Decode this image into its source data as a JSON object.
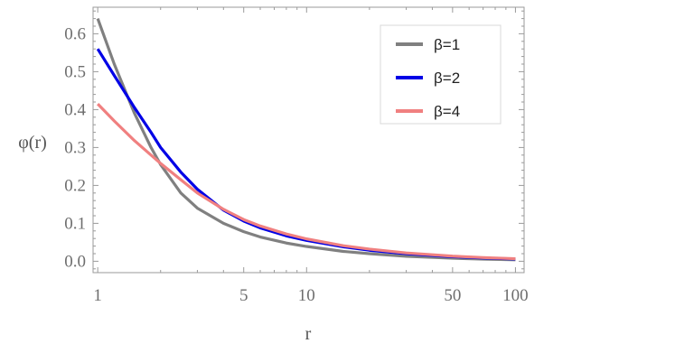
{
  "chart_data": {
    "type": "line",
    "x_scale": "log",
    "xlim": [
      0.95,
      110
    ],
    "ylim": [
      -0.03,
      0.67
    ],
    "xlabel": "r",
    "ylabel": "φ(r)",
    "x_ticks": [
      {
        "value": 1,
        "label": "1"
      },
      {
        "value": 5,
        "label": "5"
      },
      {
        "value": 10,
        "label": "10"
      },
      {
        "value": 50,
        "label": "50"
      },
      {
        "value": 100,
        "label": "100"
      }
    ],
    "y_ticks": [
      {
        "value": 0.0,
        "label": "0.0"
      },
      {
        "value": 0.1,
        "label": "0.1"
      },
      {
        "value": 0.2,
        "label": "0.2"
      },
      {
        "value": 0.3,
        "label": "0.3"
      },
      {
        "value": 0.4,
        "label": "0.4"
      },
      {
        "value": 0.5,
        "label": "0.5"
      },
      {
        "value": 0.6,
        "label": "0.6"
      }
    ],
    "legend": {
      "position": "top-right",
      "frame": true
    },
    "series": [
      {
        "name": "β=1",
        "color": "#808080",
        "x": [
          1,
          1.2,
          1.5,
          1.8,
          2,
          2.5,
          3,
          4,
          5,
          6,
          8,
          10,
          15,
          20,
          30,
          50,
          70,
          100
        ],
        "y": [
          0.64,
          0.52,
          0.39,
          0.3,
          0.255,
          0.18,
          0.14,
          0.1,
          0.078,
          0.064,
          0.048,
          0.039,
          0.026,
          0.02,
          0.013,
          0.008,
          0.0057,
          0.004
        ]
      },
      {
        "name": "β=2",
        "color": "#0000e6",
        "x": [
          1,
          1.2,
          1.5,
          1.8,
          2,
          2.5,
          3,
          4,
          5,
          6,
          8,
          10,
          15,
          20,
          30,
          50,
          70,
          100
        ],
        "y": [
          0.56,
          0.49,
          0.405,
          0.34,
          0.3,
          0.235,
          0.19,
          0.135,
          0.106,
          0.088,
          0.067,
          0.055,
          0.038,
          0.029,
          0.02,
          0.012,
          0.0086,
          0.006
        ]
      },
      {
        "name": "β=4",
        "color": "#f08080",
        "x": [
          1,
          1.2,
          1.5,
          1.8,
          2,
          2.5,
          3,
          4,
          5,
          6,
          8,
          10,
          15,
          20,
          30,
          50,
          70,
          100
        ],
        "y": [
          0.415,
          0.37,
          0.318,
          0.28,
          0.258,
          0.215,
          0.18,
          0.137,
          0.11,
          0.093,
          0.072,
          0.059,
          0.041,
          0.032,
          0.022,
          0.0135,
          0.0097,
          0.0068
        ]
      }
    ]
  }
}
